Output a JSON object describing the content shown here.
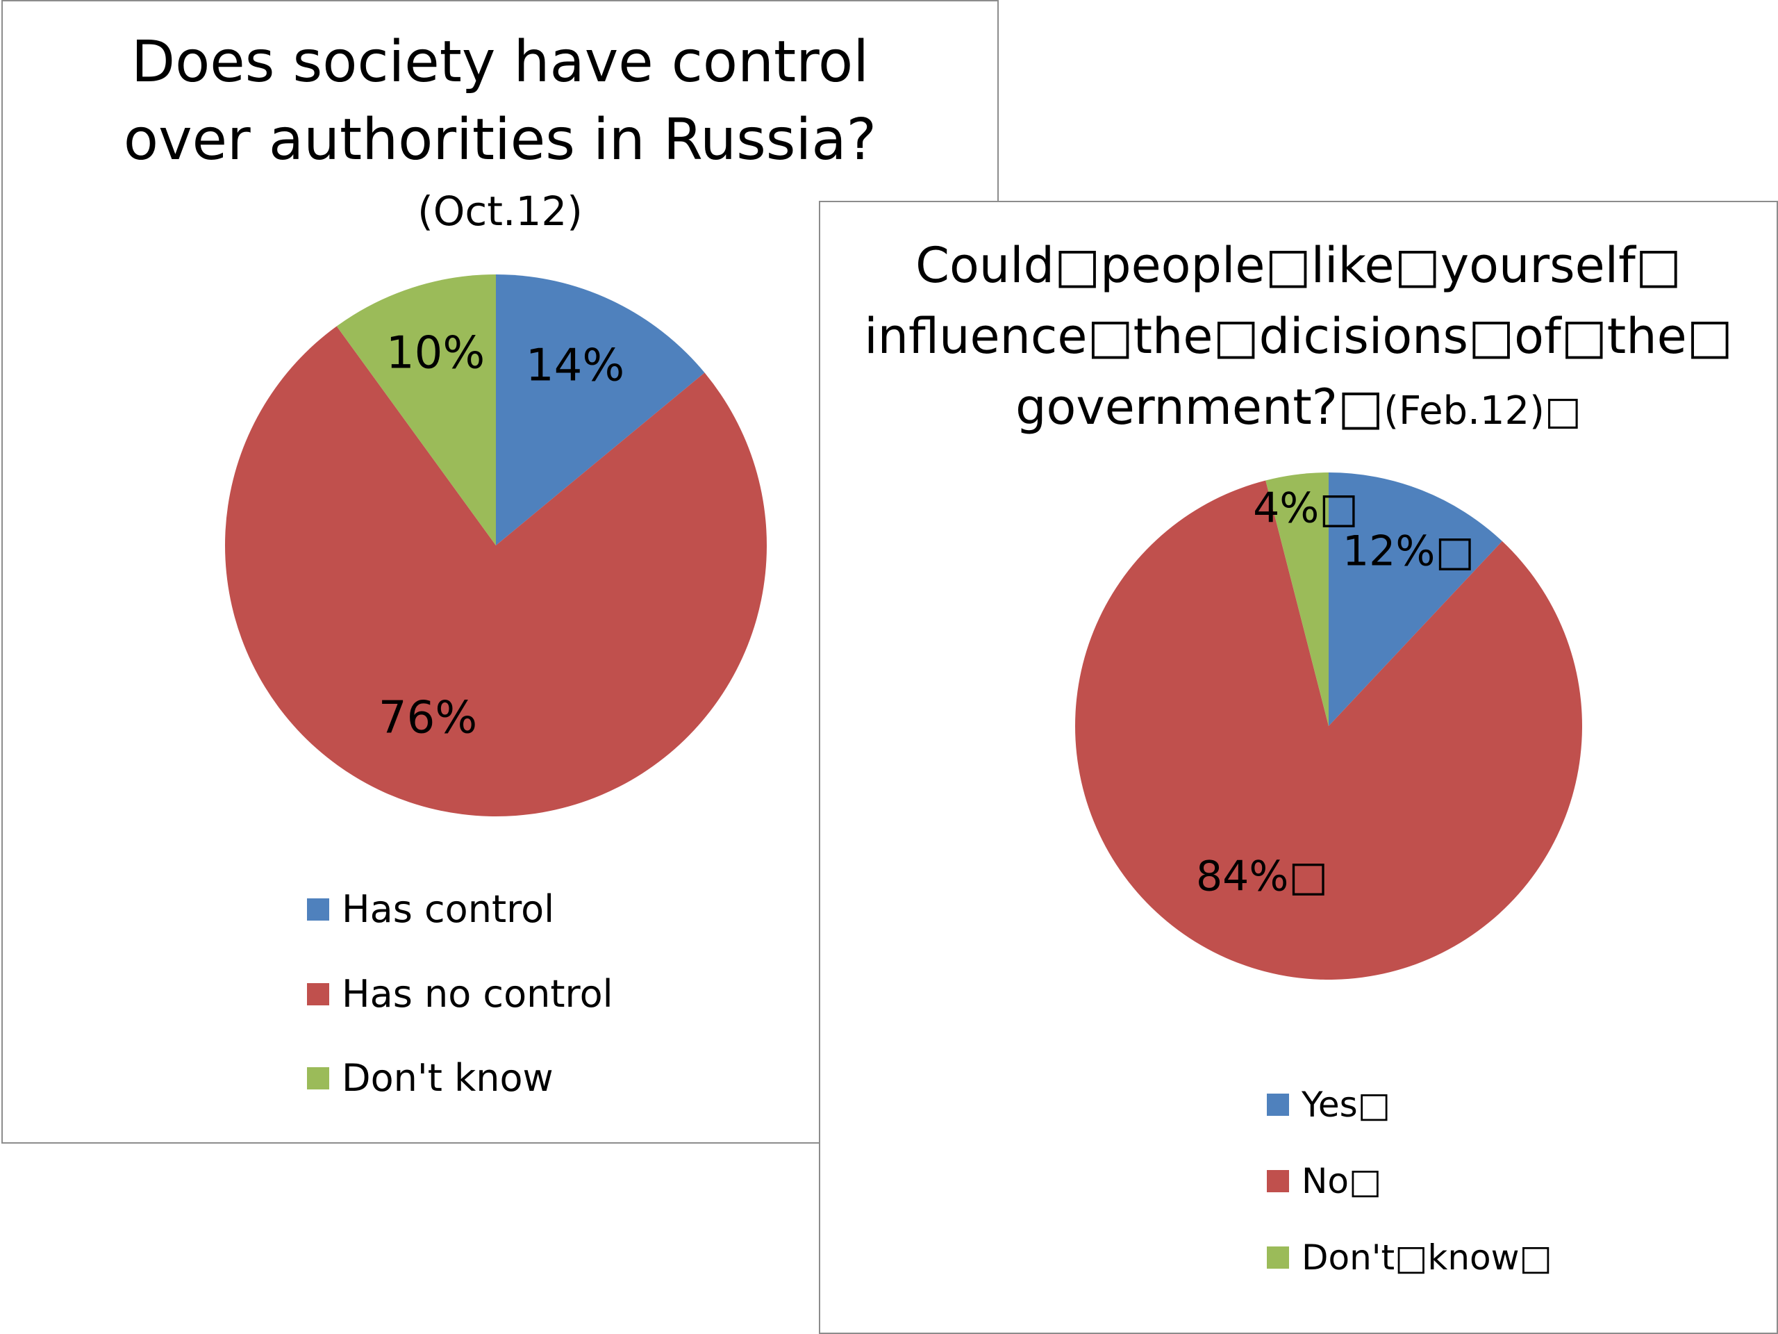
{
  "chart_data": [
    {
      "type": "pie",
      "title_lines": [
        "Does society have control",
        "over authorities in Russia?"
      ],
      "subtitle": "(Oct.12)",
      "categories": [
        "Has control",
        "Has no control",
        "Don't know"
      ],
      "values": [
        14,
        76,
        10
      ],
      "data_labels": [
        "14%",
        "76%",
        "10%"
      ],
      "colors": [
        "#4f81bd",
        "#c0504d",
        "#9bbb59"
      ],
      "legend_position": "bottom"
    },
    {
      "type": "pie",
      "title_lines": [
        "Could□people□like□yourself□",
        "influence□the□dicisions□of□the□",
        "government?□"
      ],
      "subtitle": "(Feb.12)□",
      "categories": [
        "Yes□",
        "No□",
        "Don't□know□"
      ],
      "values": [
        12,
        84,
        4
      ],
      "data_labels": [
        "12%□",
        "84%□",
        "4%□"
      ],
      "colors": [
        "#4f81bd",
        "#c0504d",
        "#9bbb59"
      ],
      "legend_position": "bottom"
    }
  ]
}
